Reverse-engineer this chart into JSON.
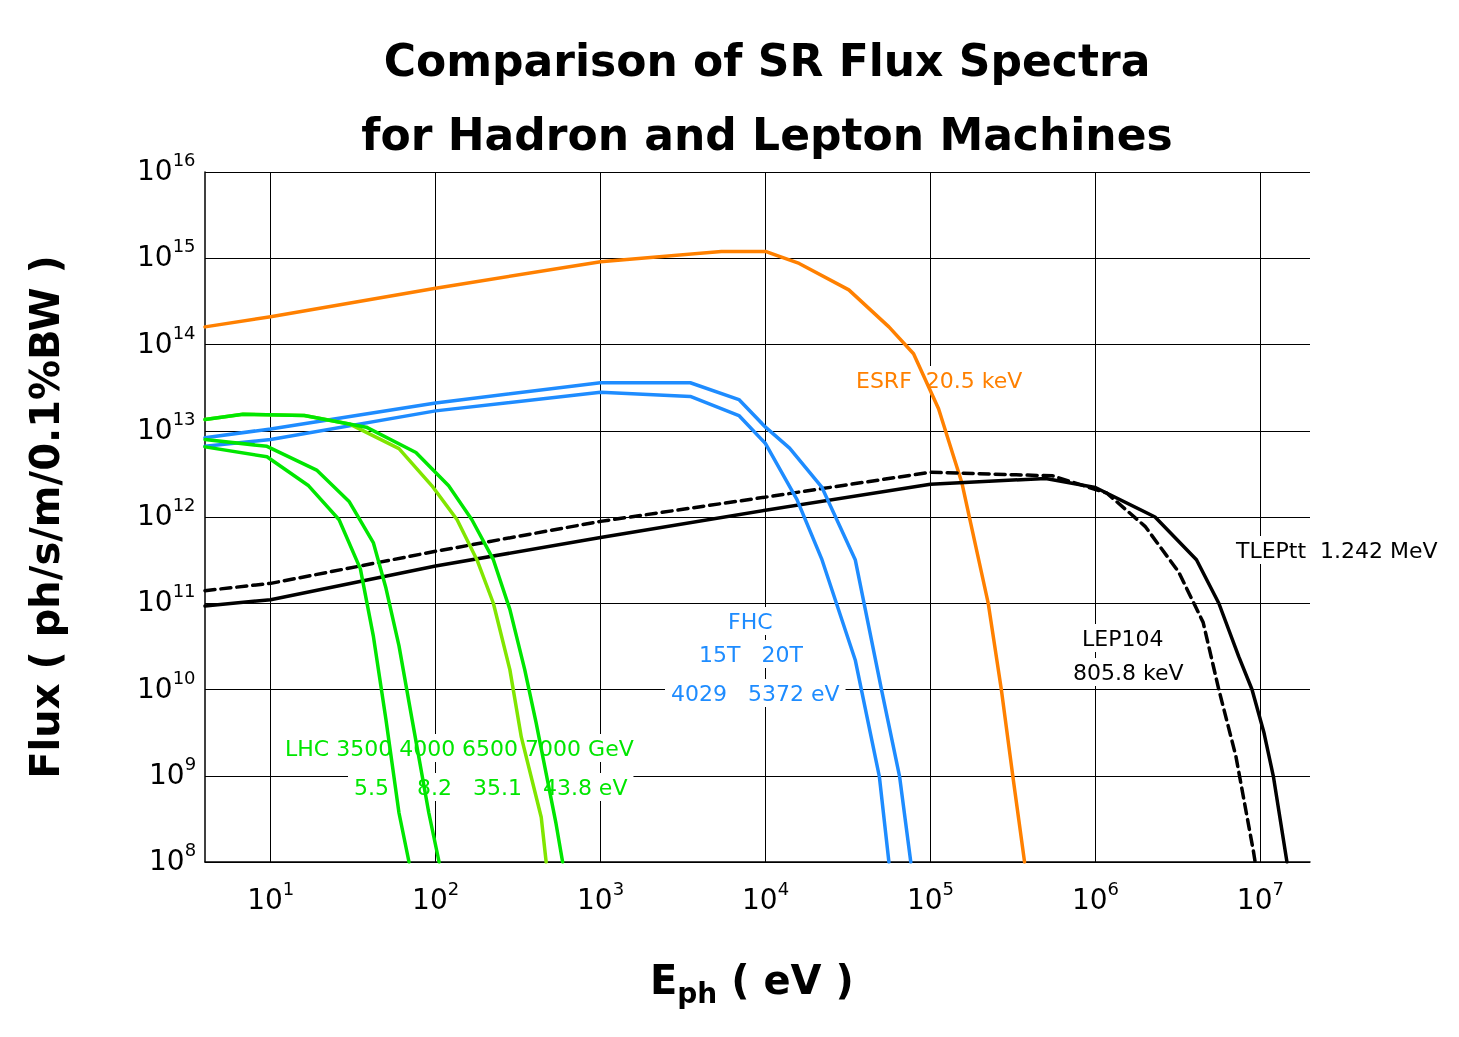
{
  "chart_data": {
    "type": "line",
    "title": "Comparison of SR Flux Spectra\nfor Hadron and Lepton Machines",
    "xlabel": "E$_{ph}$ ( eV )",
    "ylabel": "Flux ( ph/s/m/0.1%BW )",
    "log": "xy",
    "grid": true,
    "marker": "none",
    "xlim": [
      4,
      20000000
    ],
    "ylim": [
      100000000,
      10000000000000000
    ],
    "xticks": [
      {
        "value": 10,
        "label": "10$^{1}$"
      },
      {
        "value": 100,
        "label": "10$^{2}$"
      },
      {
        "value": 1000,
        "label": "10$^{3}$"
      },
      {
        "value": 10000,
        "label": "10$^{4}$"
      },
      {
        "value": 100000,
        "label": "10$^{5}$"
      },
      {
        "value": 1000000,
        "label": "10$^{6}$"
      },
      {
        "value": 10000000,
        "label": "10$^{7}$"
      }
    ],
    "yticks": [
      {
        "value": 100000000,
        "label": "10$^{8}$"
      },
      {
        "value": 1000000000,
        "label": "10$^{9}$"
      },
      {
        "value": 10000000000,
        "label": "10$^{10}$"
      },
      {
        "value": 100000000000,
        "label": "10$^{11}$"
      },
      {
        "value": 1000000000000,
        "label": "10$^{12}$"
      },
      {
        "value": 10000000000000,
        "label": "10$^{13}$"
      },
      {
        "value": 100000000000000,
        "label": "10$^{14}$"
      },
      {
        "value": 1000000000000000,
        "label": "10$^{15}$"
      },
      {
        "value": 10000000000000000,
        "label": "10$^{16}$"
      }
    ],
    "series": [
      {
        "color": "#ff8000",
        "line_style": "solid",
        "x": [
          4,
          10,
          100,
          1000,
          5400,
          10000,
          16000,
          32000,
          56000,
          79000,
          112000,
          155000,
          224000,
          269000,
          316000,
          372000
        ],
        "values": [
          160000000000000.0,
          210000000000000.0,
          450000000000000.0,
          910000000000000.0,
          1200000000000000.0,
          1200000000000000.0,
          870000000000000.0,
          430000000000000.0,
          160000000000000.0,
          78000000000000.0,
          18000000000000.0,
          2500000000000.0,
          100000000000.0,
          10000000000.0,
          980000000.0,
          100000000.0
        ]
      },
      {
        "color": "#000000",
        "line_style": "solid",
        "x": [
          4,
          10,
          100,
          1000,
          10000,
          100000,
          500000,
          1000000,
          2300000,
          4100000,
          5600000,
          7400000,
          8900000,
          10500000,
          12000000,
          14500000
        ],
        "values": [
          93000000000.0,
          110000000000.0,
          270000000000.0,
          580000000000.0,
          1200000000000.0,
          2400000000000.0,
          2800000000000.0,
          2200000000000.0,
          1000000000000.0,
          320000000000.0,
          100000000000.0,
          24000000000.0,
          10000000000.0,
          3200000000.0,
          980000000.0,
          100000000.0
        ]
      },
      {
        "color": "#000000",
        "line_style": "dashed",
        "x": [
          4,
          10,
          100,
          1000,
          10000,
          100000,
          550000,
          1170000,
          2000000,
          3200000,
          4500000,
          5600000,
          7100000,
          9100000,
          9300000
        ],
        "values": [
          140000000000.0,
          170000000000.0,
          400000000000.0,
          890000000000.0,
          1700000000000.0,
          3300000000000.0,
          3000000000000.0,
          1900000000000.0,
          780000000000.0,
          230000000000.0,
          60000000000.0,
          10000000000.0,
          1700000000.0,
          130000000.0,
          100000000.0
        ]
      },
      {
        "color": "#1e8cff",
        "line_style": "solid",
        "x": [
          4,
          10,
          100,
          1000,
          3500,
          6900,
          10000,
          14000,
          22000,
          35000,
          51000,
          65000,
          76000
        ],
        "values": [
          8300000000000.0,
          10500000000000.0,
          21000000000000.0,
          36000000000000.0,
          36000000000000.0,
          23000000000000.0,
          11000000000000.0,
          6300000000000.0,
          2200000000000.0,
          320000000000.0,
          9100000000.0,
          980000000.0,
          100000000.0
        ]
      },
      {
        "color": "#1e8cff",
        "line_style": "solid",
        "x": [
          4,
          10,
          100,
          1000,
          3500,
          6900,
          10000,
          15500,
          22000,
          35000,
          49000,
          56000
        ],
        "values": [
          6600000000000.0,
          7900000000000.0,
          17000000000000.0,
          28000000000000.0,
          25000000000000.0,
          15000000000000.0,
          7100000000000.0,
          1600000000000.0,
          320000000000.0,
          22000000000.0,
          980000000.0,
          100000000.0
        ]
      },
      {
        "color": "#00e600",
        "line_style": "solid",
        "x": [
          4,
          9.5,
          17,
          26,
          35,
          42,
          50,
          60,
          69
        ],
        "values": [
          6500000000000.0,
          5000000000000.0,
          2300000000000.0,
          930000000000.0,
          250000000000.0,
          41000000000.0,
          4500000000.0,
          370000000.0,
          100000000.0
        ]
      },
      {
        "color": "#00e600",
        "line_style": "solid",
        "x": [
          4,
          9.5,
          19,
          30,
          42,
          50,
          60,
          72,
          91,
          105
        ],
        "values": [
          7900000000000.0,
          6600000000000.0,
          3500000000000.0,
          1500000000000.0,
          500000000000.0,
          150000000000.0,
          32000000000.0,
          4500000000.0,
          370000000.0,
          100000000.0
        ]
      },
      {
        "color": "#80e600",
        "line_style": "solid",
        "x": [
          4,
          6.8,
          16,
          30,
          60,
          95,
          135,
          178,
          224,
          282,
          331,
          437,
          468
        ],
        "values": [
          13500000000000.0,
          15500000000000.0,
          15000000000000.0,
          12000000000000.0,
          6200000000000.0,
          2300000000000.0,
          930000000000.0,
          320000000000.0,
          100000000000.0,
          17000000000.0,
          2800000000.0,
          330000000.0,
          100000000.0
        ]
      },
      {
        "color": "#00e600",
        "line_style": "solid",
        "x": [
          4,
          6.8,
          16,
          38,
          76,
          120,
          166,
          224,
          282,
          347,
          407,
          537,
          589
        ],
        "values": [
          13500000000000.0,
          15500000000000.0,
          15000000000000.0,
          11000000000000.0,
          5600000000000.0,
          2300000000000.0,
          930000000000.0,
          320000000000.0,
          85000000000.0,
          17000000000.0,
          4100000000.0,
          280000000.0,
          100000000.0
        ]
      }
    ],
    "annotations": [
      "ESRF  20.5 keV",
      "TLEPtt  1.242 MeV",
      "LEP104",
      "805.8 keV",
      "FHC",
      "15T   20T",
      "4029   5372 eV",
      "LHC 3500 4000 6500 7000 GeV",
      "5.5    8.2   35.1   43.8 eV"
    ]
  }
}
